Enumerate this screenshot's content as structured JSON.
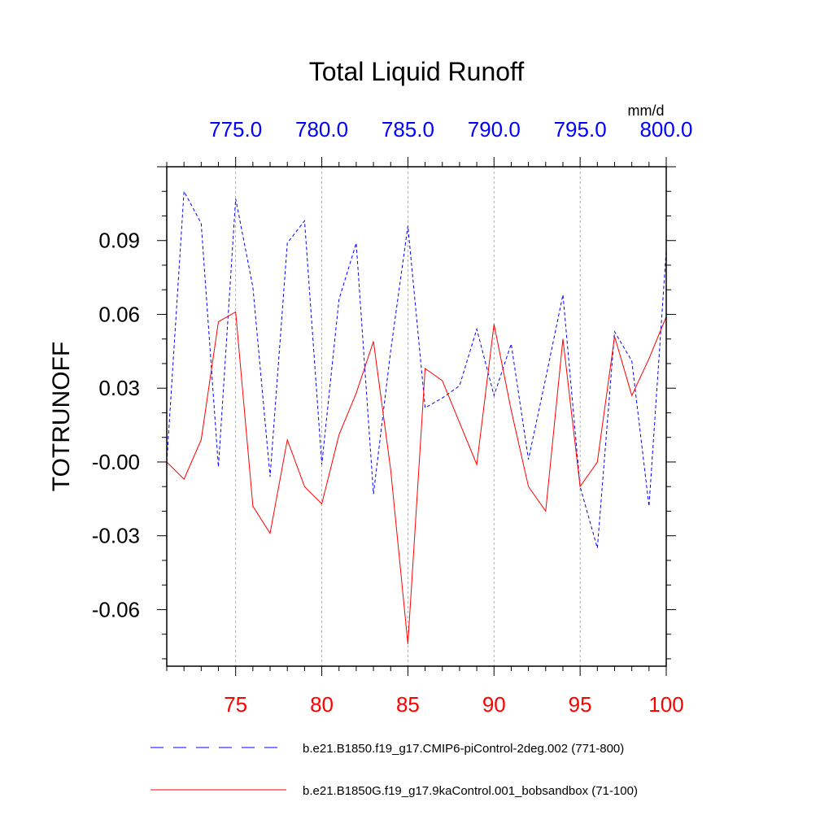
{
  "chart_data": {
    "type": "line",
    "title": "Total Liquid Runoff",
    "units": "mm/d",
    "ylabel": "TOTRUNOFF",
    "ylim": [
      -0.083,
      0.12
    ],
    "yticks": [
      -0.06,
      -0.03,
      0.0,
      0.03,
      0.06,
      0.09
    ],
    "ytick_labels": [
      "-0.06",
      "-0.03",
      "-0.00",
      "0.03",
      "0.06",
      "0.09"
    ],
    "bottom_axis": {
      "xlim": [
        71,
        100
      ],
      "ticks": [
        75,
        80,
        85,
        90,
        95,
        100
      ],
      "tick_labels": [
        "75",
        "80",
        "85",
        "90",
        "95",
        "100"
      ],
      "color": "#ff0000"
    },
    "top_axis": {
      "xlim": [
        771,
        800
      ],
      "ticks": [
        775,
        780,
        785,
        790,
        795,
        800
      ],
      "tick_labels": [
        "775.0",
        "780.0",
        "785.0",
        "790.0",
        "795.0",
        "800.0"
      ],
      "color": "#0000ff"
    },
    "series": [
      {
        "name": "b.e21.B1850.f19_g17.CMIP6-piControl-2deg.002 (771-800)",
        "axis": "top",
        "color": "#0000ff",
        "style": "dashed",
        "x": [
          771,
          772,
          773,
          774,
          775,
          776,
          777,
          778,
          779,
          780,
          781,
          782,
          783,
          784,
          785,
          786,
          787,
          788,
          789,
          790,
          791,
          792,
          793,
          794,
          795,
          796,
          797,
          798,
          799,
          800
        ],
        "values": [
          0.0,
          0.11,
          0.097,
          -0.002,
          0.107,
          0.071,
          -0.006,
          0.089,
          0.098,
          -0.001,
          0.066,
          0.089,
          -0.013,
          0.045,
          0.096,
          0.022,
          0.026,
          0.031,
          0.054,
          0.027,
          0.048,
          0.001,
          0.034,
          0.068,
          -0.01,
          -0.035,
          0.053,
          0.041,
          -0.018,
          0.086
        ]
      },
      {
        "name": "b.e21.B1850G.f19_g17.9kaControl.001_bobsandbox (71-100)",
        "axis": "bottom",
        "color": "#ff0000",
        "style": "solid",
        "x": [
          71,
          72,
          73,
          74,
          75,
          76,
          77,
          78,
          79,
          80,
          81,
          82,
          83,
          84,
          85,
          86,
          87,
          88,
          89,
          90,
          91,
          92,
          93,
          94,
          95,
          96,
          97,
          98,
          99,
          100
        ],
        "values": [
          0.0,
          -0.007,
          0.009,
          0.057,
          0.061,
          -0.018,
          -0.029,
          0.009,
          -0.01,
          -0.017,
          0.011,
          0.028,
          0.049,
          -0.003,
          -0.074,
          0.038,
          0.033,
          0.016,
          -0.001,
          0.056,
          0.021,
          -0.01,
          -0.02,
          0.05,
          -0.01,
          0.0,
          0.051,
          0.027,
          0.042,
          0.059
        ]
      }
    ]
  }
}
